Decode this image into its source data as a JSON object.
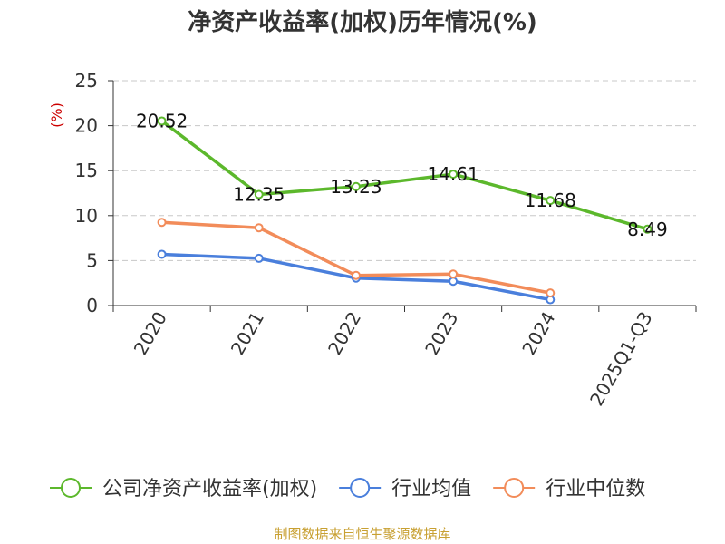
{
  "chart_data": {
    "type": "line",
    "title": "净资产收益率(加权)历年情况(%)",
    "ylabel": "(%)",
    "xlabel": "",
    "ylim": [
      0,
      25
    ],
    "yticks": [
      0,
      5,
      10,
      15,
      20,
      25
    ],
    "grid": true,
    "categories": [
      "2020",
      "2021",
      "2022",
      "2023",
      "2024",
      "2025Q1-Q3"
    ],
    "series": [
      {
        "name": "公司净资产收益率(加权)",
        "color": "#5cb82c",
        "values": [
          20.52,
          12.35,
          13.23,
          14.61,
          11.68,
          8.49
        ],
        "labels": [
          "20.52",
          "12.35",
          "13.23",
          "14.61",
          "11.68",
          "8.49"
        ],
        "show_labels": true
      },
      {
        "name": "行业均值",
        "color": "#4a7fdc",
        "values": [
          5.7,
          5.25,
          3.05,
          2.7,
          0.65,
          null
        ],
        "show_labels": false
      },
      {
        "name": "行业中位数",
        "color": "#f28c5a",
        "values": [
          9.25,
          8.65,
          3.35,
          3.5,
          1.4,
          null
        ],
        "show_labels": false
      }
    ],
    "legend_position": "bottom",
    "source": "制图数据来自恒生聚源数据库"
  }
}
